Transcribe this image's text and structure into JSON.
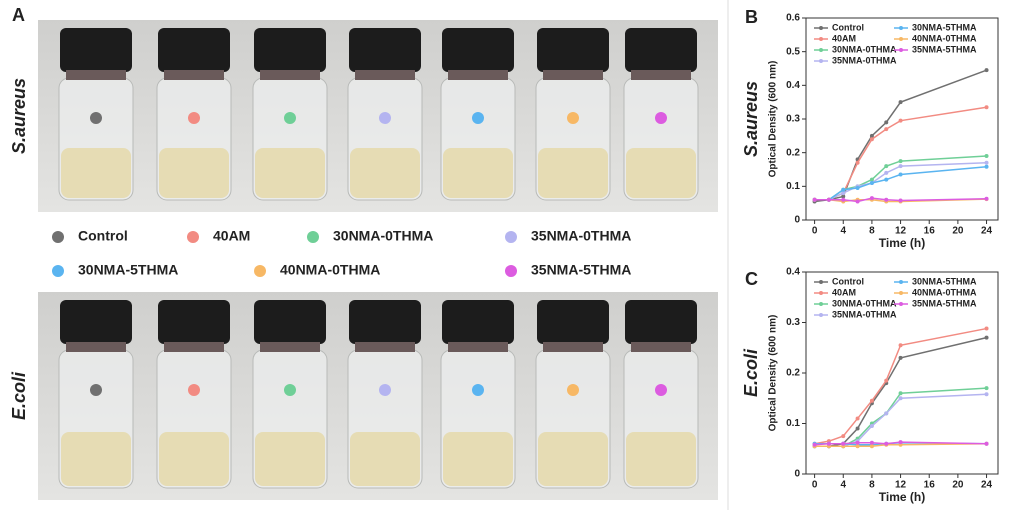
{
  "figure": {
    "panel_label": "A",
    "row_labels": [
      "S.aureus",
      "E.coli"
    ]
  },
  "chart_data": [
    {
      "type": "line",
      "panel_label": "B",
      "side_label": "S.aureus",
      "x_label": "Time (h)",
      "y_label": "Optical Density (600 nm)",
      "x": [
        0,
        2,
        4,
        6,
        8,
        10,
        12,
        24
      ],
      "xlim": [
        -1.2,
        25.6
      ],
      "xticks": [
        0,
        4,
        8,
        12,
        16,
        20,
        24
      ],
      "ylim": [
        0,
        0.6
      ],
      "yticks": [
        0,
        0.1,
        0.2,
        0.3,
        0.4,
        0.5,
        0.6
      ],
      "series": [
        {
          "name": "Control",
          "color": "#707070",
          "values": [
            0.055,
            0.06,
            0.07,
            0.18,
            0.25,
            0.29,
            0.35,
            0.445
          ]
        },
        {
          "name": "40AM",
          "color": "#f28b82",
          "values": [
            0.06,
            0.06,
            0.08,
            0.17,
            0.24,
            0.27,
            0.295,
            0.335
          ]
        },
        {
          "name": "30NMA-0THMA",
          "color": "#6fcf97",
          "values": [
            0.06,
            0.06,
            0.09,
            0.1,
            0.12,
            0.16,
            0.175,
            0.19
          ]
        },
        {
          "name": "35NMA-0THMA",
          "color": "#b4b4f0",
          "values": [
            0.06,
            0.06,
            0.08,
            0.1,
            0.11,
            0.14,
            0.16,
            0.17
          ]
        },
        {
          "name": "30NMA-5THMA",
          "color": "#5ab4f0",
          "values": [
            0.06,
            0.06,
            0.09,
            0.095,
            0.11,
            0.12,
            0.135,
            0.158
          ]
        },
        {
          "name": "40NMA-0THMA",
          "color": "#f7b865",
          "values": [
            0.06,
            0.06,
            0.055,
            0.06,
            0.06,
            0.055,
            0.055,
            0.062
          ]
        },
        {
          "name": "35NMA-5THMA",
          "color": "#dc5ce0",
          "values": [
            0.06,
            0.06,
            0.06,
            0.055,
            0.065,
            0.06,
            0.058,
            0.063
          ]
        }
      ]
    },
    {
      "type": "line",
      "panel_label": "C",
      "side_label": "E.coli",
      "x_label": "Time (h)",
      "y_label": "Optical Density (600 nm)",
      "x": [
        0,
        2,
        4,
        6,
        8,
        10,
        12,
        24
      ],
      "xlim": [
        -1.2,
        25.6
      ],
      "xticks": [
        0,
        4,
        8,
        12,
        16,
        20,
        24
      ],
      "ylim": [
        0,
        0.4
      ],
      "yticks": [
        0,
        0.1,
        0.2,
        0.3,
        0.4
      ],
      "series": [
        {
          "name": "Control",
          "color": "#707070",
          "values": [
            0.055,
            0.055,
            0.06,
            0.09,
            0.14,
            0.18,
            0.23,
            0.27
          ]
        },
        {
          "name": "40AM",
          "color": "#f28b82",
          "values": [
            0.06,
            0.065,
            0.075,
            0.11,
            0.145,
            0.185,
            0.255,
            0.288
          ]
        },
        {
          "name": "30NMA-0THMA",
          "color": "#6fcf97",
          "values": [
            0.055,
            0.055,
            0.055,
            0.07,
            0.1,
            0.12,
            0.16,
            0.17
          ]
        },
        {
          "name": "35NMA-0THMA",
          "color": "#b4b4f0",
          "values": [
            0.055,
            0.055,
            0.055,
            0.065,
            0.095,
            0.12,
            0.15,
            0.158
          ]
        },
        {
          "name": "30NMA-5THMA",
          "color": "#5ab4f0",
          "values": [
            0.06,
            0.06,
            0.06,
            0.058,
            0.058,
            0.06,
            0.062,
            0.06
          ]
        },
        {
          "name": "40NMA-0THMA",
          "color": "#f7b865",
          "values": [
            0.055,
            0.055,
            0.055,
            0.055,
            0.055,
            0.058,
            0.058,
            0.06
          ]
        },
        {
          "name": "35NMA-5THMA",
          "color": "#dc5ce0",
          "values": [
            0.058,
            0.06,
            0.06,
            0.062,
            0.062,
            0.06,
            0.063,
            0.06
          ]
        }
      ]
    }
  ]
}
